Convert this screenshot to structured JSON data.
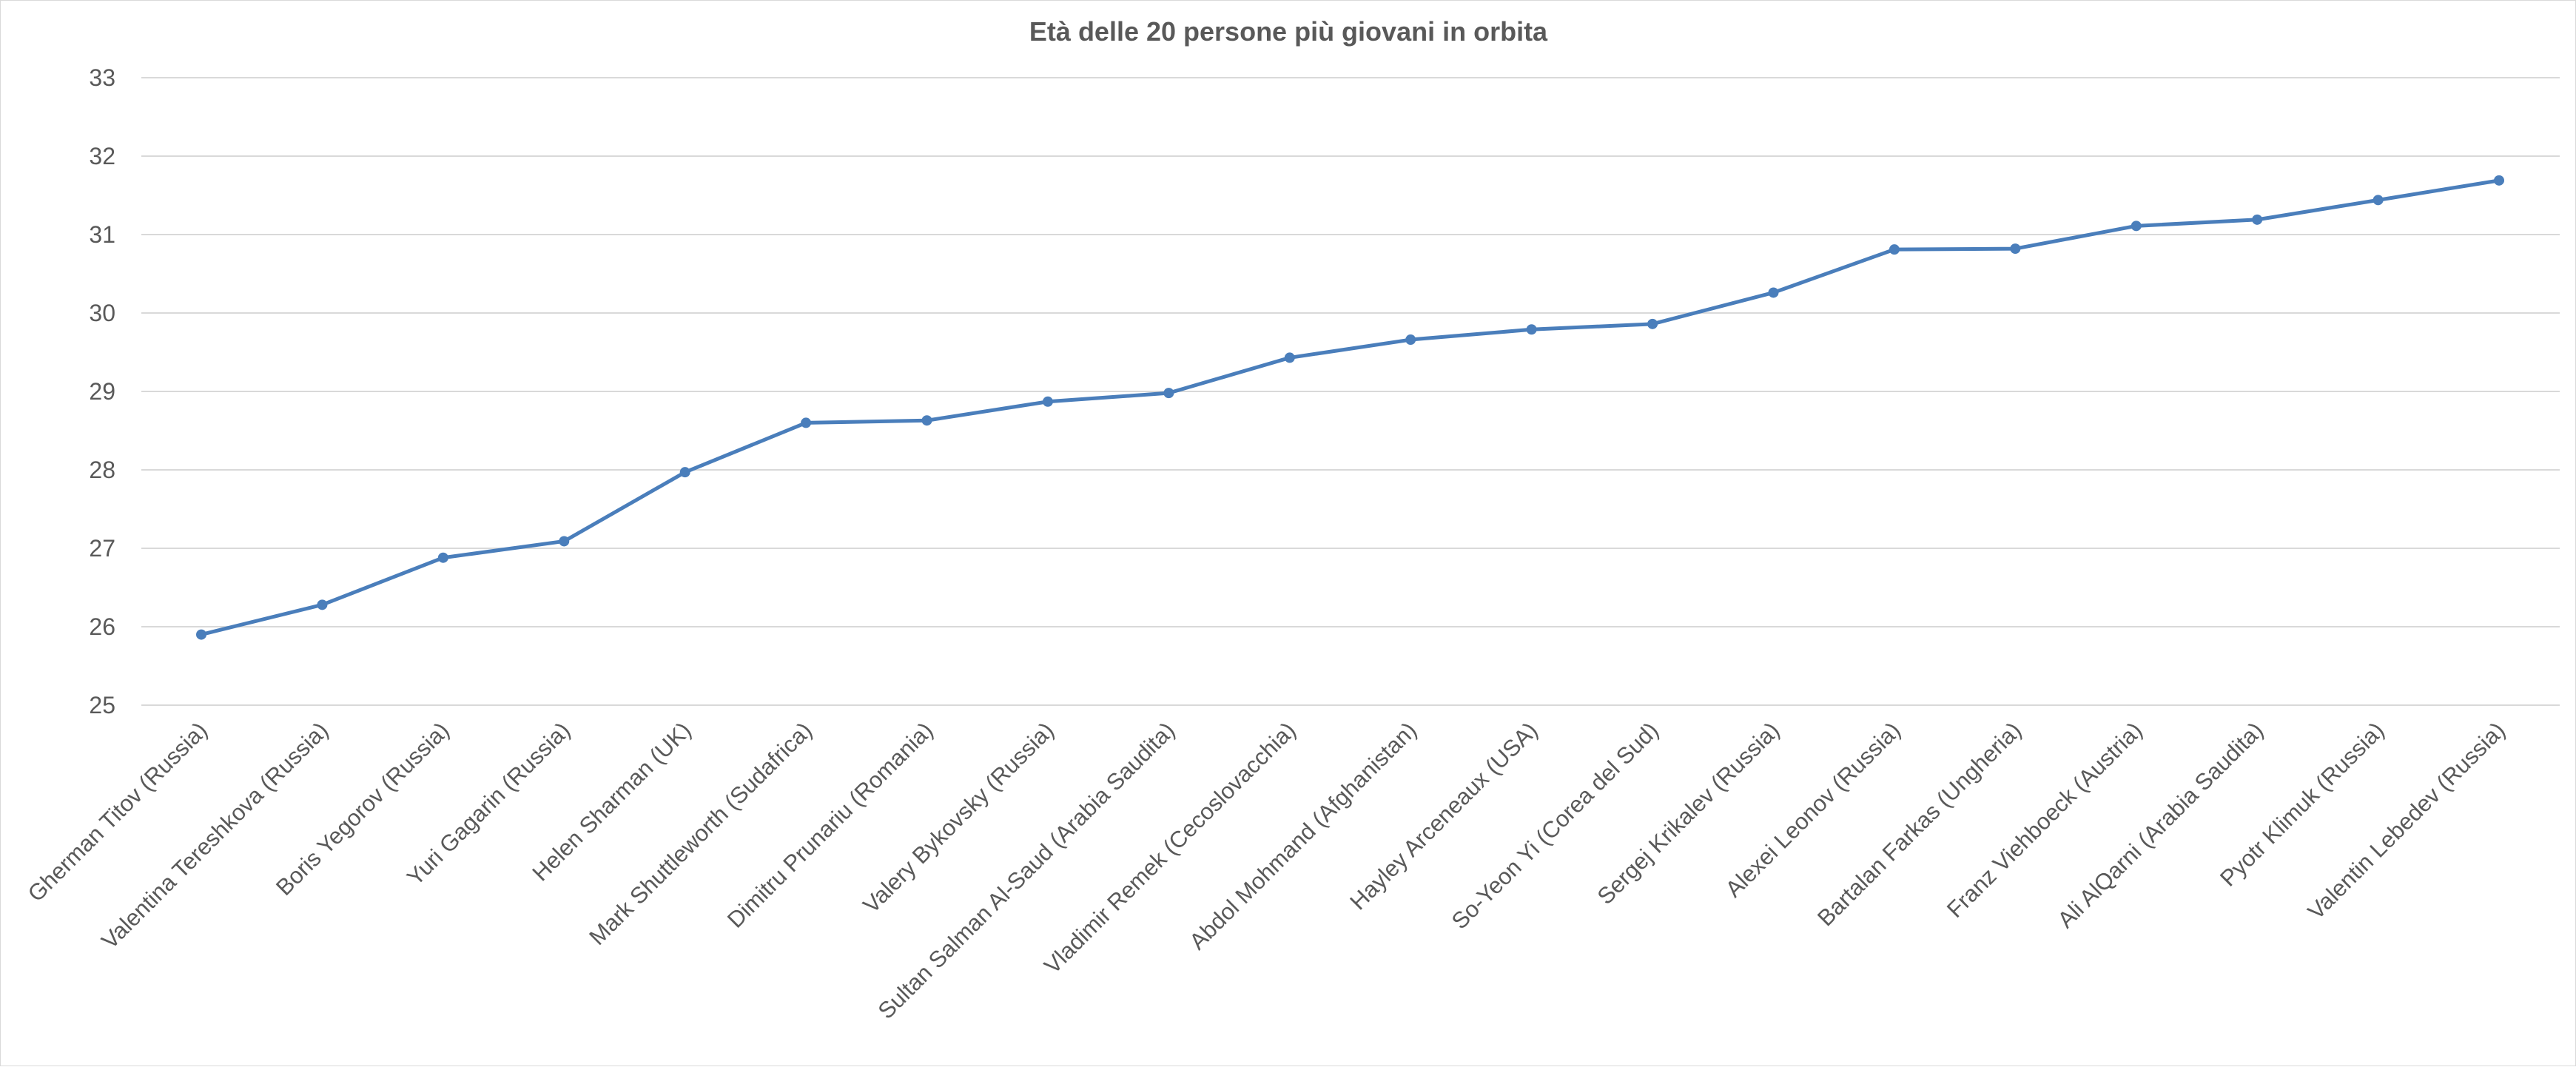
{
  "chart_data": {
    "type": "line",
    "title": "Età delle 20 persone più giovani in orbita",
    "xlabel": "",
    "ylabel": "",
    "ylim": [
      25,
      33
    ],
    "yticks": [
      25,
      26,
      27,
      28,
      29,
      30,
      31,
      32,
      33
    ],
    "grid": true,
    "legend": "none",
    "colors": {
      "series": "#4a7ebb",
      "grid": "#d9d9d9",
      "text": "#595959"
    },
    "categories": [
      "Gherman Titov (Russia)",
      "Valentina Tereshkova (Russia)",
      "Boris Yegorov (Russia)",
      "Yuri Gagarin (Russia)",
      "Helen Sharman (UK)",
      "Mark Shuttleworth (Sudafrica)",
      "Dimitru Prunariu (Romania)",
      "Valery Bykovsky (Russia)",
      "Sultan Salman Al-Saud (Arabia Saudita)",
      "Vladimir Remek (Cecoslovacchia)",
      "Abdol Mohmand (Afghanistan)",
      "Hayley Arceneaux (USA)",
      "So-Yeon Yi (Corea del Sud)",
      "Sergej Krikalev (Russia)",
      "Alexei Leonov (Russia)",
      "Bartalan Farkas (Ungheria)",
      "Franz Viehboeck (Austria)",
      "Ali AlQarni (Arabia Saudita)",
      "Pyotr Klimuk (Russia)",
      "Valentin Lebedev (Russia)"
    ],
    "series": [
      {
        "values": [
          25.9,
          26.28,
          26.88,
          27.09,
          27.97,
          28.6,
          28.63,
          28.87,
          28.98,
          29.43,
          29.66,
          29.79,
          29.86,
          30.26,
          30.81,
          30.82,
          31.11,
          31.19,
          31.44,
          31.69
        ]
      }
    ]
  }
}
